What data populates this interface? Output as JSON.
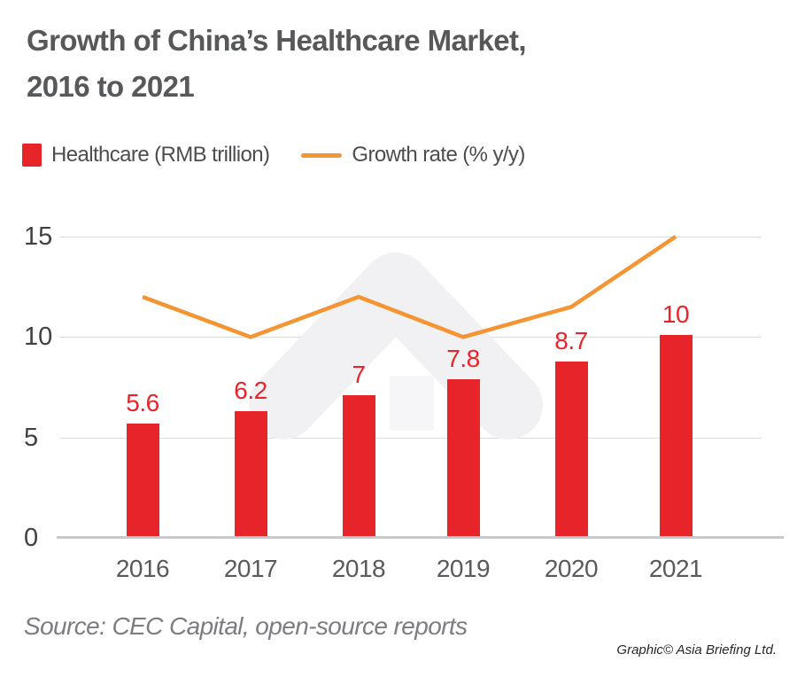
{
  "title": {
    "line1": "Growth of China’s Healthcare Market,",
    "line2": "2016 to 2021"
  },
  "legend": {
    "healthcare": {
      "label": "Healthcare (RMB trillion)",
      "marker": "square",
      "color": "#e8242b"
    },
    "growth": {
      "label": "Growth rate (% y/y)",
      "marker": "line",
      "color": "#f59432"
    }
  },
  "chart_data": {
    "type": "bar",
    "title": "Growth of China’s Healthcare Market, 2016 to 2021",
    "categories": [
      "2016",
      "2017",
      "2018",
      "2019",
      "2020",
      "2021"
    ],
    "series": [
      {
        "name": "Healthcare (RMB trillion)",
        "type": "bar",
        "color": "#e8242b",
        "values": [
          5.6,
          6.2,
          7,
          7.8,
          8.7,
          10
        ],
        "value_labels": [
          "5.6",
          "6.2",
          "7",
          "7.8",
          "8.7",
          "10"
        ]
      },
      {
        "name": "Growth rate (% y/y)",
        "type": "line",
        "color": "#f59432",
        "values": [
          12,
          10,
          12,
          10,
          11.5,
          15
        ]
      }
    ],
    "yaxis": {
      "range": [
        0,
        15
      ],
      "ticks": [
        0,
        5,
        10,
        15
      ],
      "grid": true
    },
    "xlabel": "",
    "ylabel": "",
    "legend_position": "top"
  },
  "source": {
    "text": "Source: CEC Capital, open-source reports"
  },
  "credit": {
    "text": "Graphic© Asia Briefing Ltd."
  },
  "colors": {
    "bar_red": "#e8242b",
    "line_orange": "#f59432",
    "title_gray": "#57585a",
    "axis_gray": "#414042",
    "gridline": "#dcdcdd",
    "watermark": "#f1f1f3"
  }
}
